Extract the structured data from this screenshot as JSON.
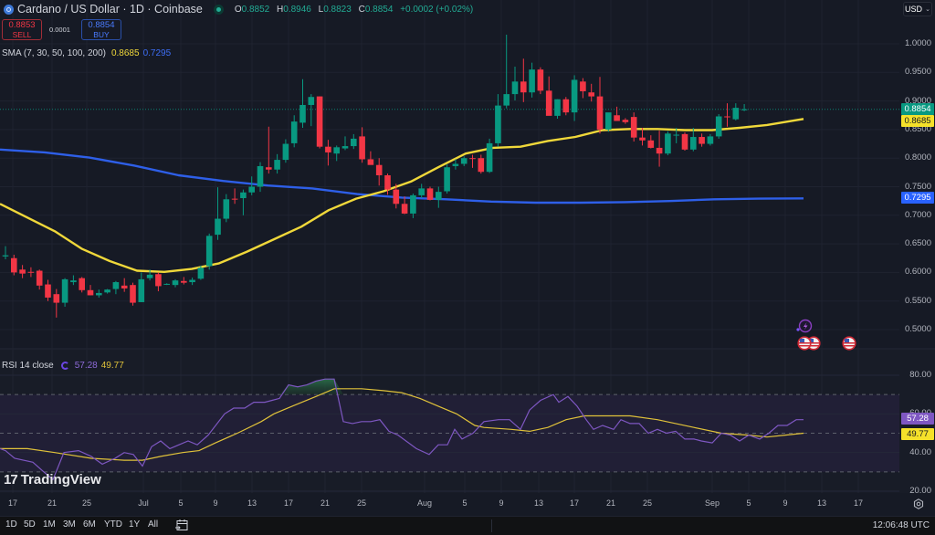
{
  "header": {
    "symbol_title": "Cardano / US Dollar · 1D · Coinbase",
    "ohlc": {
      "open_label": "O",
      "open": "0.8852",
      "high_label": "H",
      "high": "0.8946",
      "low_label": "L",
      "low": "0.8823",
      "close_label": "C",
      "close": "0.8854",
      "change": "+0.0002 (+0.02%)"
    },
    "currency_selector": "USD",
    "currency_chevron": "⌄"
  },
  "trade": {
    "sell_price": "0.8853",
    "sell_label": "SELL",
    "spread": "0.0001",
    "buy_price": "0.8854",
    "buy_label": "BUY"
  },
  "indicators": {
    "sma": {
      "label": "SMA (7, 30, 50, 100, 200)",
      "value1": "0.8685",
      "value2": "0.7295",
      "color1": "#f0d83a",
      "color2": "#2e5fe8"
    },
    "rsi": {
      "label": "RSI 14 close",
      "value": "57.28",
      "ma_value": "49.77",
      "color": "#7e57c2",
      "ma_color": "#e0c23a"
    }
  },
  "price_axis": {
    "labels": [
      "1.0000",
      "0.9500",
      "0.9000",
      "0.8500",
      "0.8000",
      "0.7500",
      "0.7000",
      "0.6500",
      "0.6000",
      "0.5500",
      "0.5000"
    ],
    "current_price_tag": "0.8854",
    "sma_yellow_tag": "0.8685",
    "sma_blue_tag": "0.7295"
  },
  "rsi_axis": {
    "labels": [
      "80.00",
      "60.00",
      "40.00",
      "20.00"
    ],
    "rsi_tag": "57.28",
    "rsi_ma_tag": "49.77"
  },
  "time_axis": {
    "labels": [
      "17",
      "21",
      "25",
      "Jul",
      "5",
      "9",
      "13",
      "17",
      "21",
      "25",
      "Aug",
      "5",
      "9",
      "13",
      "17",
      "21",
      "25",
      "Sep",
      "5",
      "9",
      "13",
      "17"
    ]
  },
  "bottom_bar": {
    "ranges": [
      "1D",
      "5D",
      "1M",
      "3M",
      "6M",
      "YTD",
      "1Y",
      "All"
    ],
    "clock": "12:06:48 UTC"
  },
  "branding": {
    "logo_text": "TradingView",
    "logo_mark": "17"
  },
  "colors": {
    "up": "#089981",
    "down": "#f23645",
    "background": "#161a25",
    "grid": "#222633"
  },
  "chart_data": {
    "type": "candlestick",
    "title": "Cardano / US Dollar · 1D · Coinbase",
    "xlabel": "",
    "ylabel": "USD",
    "ylim": [
      0.47,
      1.02
    ],
    "x_ticks": [
      "17",
      "21",
      "25",
      "Jul",
      "5",
      "9",
      "13",
      "17",
      "21",
      "25",
      "Aug",
      "5",
      "9",
      "13",
      "17",
      "21",
      "25",
      "Sep",
      "5",
      "9",
      "13",
      "17"
    ],
    "candles": [
      {
        "date": "Jun 15",
        "o": 0.628,
        "h": 0.646,
        "l": 0.623,
        "c": 0.63
      },
      {
        "date": "Jun 16",
        "o": 0.625,
        "h": 0.631,
        "l": 0.595,
        "c": 0.6
      },
      {
        "date": "Jun 17",
        "o": 0.605,
        "h": 0.613,
        "l": 0.59,
        "c": 0.598
      },
      {
        "date": "Jun 18",
        "o": 0.601,
        "h": 0.609,
        "l": 0.592,
        "c": 0.6
      },
      {
        "date": "Jun 19",
        "o": 0.603,
        "h": 0.605,
        "l": 0.57,
        "c": 0.577
      },
      {
        "date": "Jun 20",
        "o": 0.579,
        "h": 0.587,
        "l": 0.55,
        "c": 0.556
      },
      {
        "date": "Jun 21",
        "o": 0.562,
        "h": 0.571,
        "l": 0.521,
        "c": 0.547
      },
      {
        "date": "Jun 22",
        "o": 0.547,
        "h": 0.59,
        "l": 0.54,
        "c": 0.588
      },
      {
        "date": "Jun 23",
        "o": 0.583,
        "h": 0.595,
        "l": 0.578,
        "c": 0.586
      },
      {
        "date": "Jun 24",
        "o": 0.59,
        "h": 0.592,
        "l": 0.565,
        "c": 0.569
      },
      {
        "date": "Jun 25",
        "o": 0.569,
        "h": 0.578,
        "l": 0.56,
        "c": 0.56
      },
      {
        "date": "Jun 26",
        "o": 0.56,
        "h": 0.57,
        "l": 0.556,
        "c": 0.564
      },
      {
        "date": "Jun 27",
        "o": 0.565,
        "h": 0.571,
        "l": 0.563,
        "c": 0.57
      },
      {
        "date": "Jun 28",
        "o": 0.571,
        "h": 0.585,
        "l": 0.562,
        "c": 0.583
      },
      {
        "date": "Jun 29",
        "o": 0.577,
        "h": 0.59,
        "l": 0.566,
        "c": 0.572
      },
      {
        "date": "Jun 30",
        "o": 0.578,
        "h": 0.582,
        "l": 0.542,
        "c": 0.547
      },
      {
        "date": "Jul 1",
        "o": 0.548,
        "h": 0.6,
        "l": 0.548,
        "c": 0.588
      },
      {
        "date": "Jul 2",
        "o": 0.59,
        "h": 0.605,
        "l": 0.586,
        "c": 0.596
      },
      {
        "date": "Jul 3",
        "o": 0.597,
        "h": 0.6,
        "l": 0.567,
        "c": 0.576
      },
      {
        "date": "Jul 4",
        "o": 0.58,
        "h": 0.581,
        "l": 0.578,
        "c": 0.58
      },
      {
        "date": "Jul 5",
        "o": 0.578,
        "h": 0.588,
        "l": 0.574,
        "c": 0.586
      },
      {
        "date": "Jul 6",
        "o": 0.585,
        "h": 0.592,
        "l": 0.579,
        "c": 0.582
      },
      {
        "date": "Jul 7",
        "o": 0.583,
        "h": 0.591,
        "l": 0.578,
        "c": 0.587
      },
      {
        "date": "Jul 8",
        "o": 0.589,
        "h": 0.612,
        "l": 0.587,
        "c": 0.608
      },
      {
        "date": "Jul 9",
        "o": 0.611,
        "h": 0.668,
        "l": 0.605,
        "c": 0.664
      },
      {
        "date": "Jul 10",
        "o": 0.666,
        "h": 0.749,
        "l": 0.657,
        "c": 0.694
      },
      {
        "date": "Jul 11",
        "o": 0.694,
        "h": 0.737,
        "l": 0.688,
        "c": 0.728
      },
      {
        "date": "Jul 12",
        "o": 0.729,
        "h": 0.747,
        "l": 0.72,
        "c": 0.728
      },
      {
        "date": "Jul 13",
        "o": 0.73,
        "h": 0.745,
        "l": 0.7,
        "c": 0.74
      },
      {
        "date": "Jul 14",
        "o": 0.74,
        "h": 0.768,
        "l": 0.735,
        "c": 0.75
      },
      {
        "date": "Jul 15",
        "o": 0.75,
        "h": 0.793,
        "l": 0.741,
        "c": 0.786
      },
      {
        "date": "Jul 16",
        "o": 0.784,
        "h": 0.855,
        "l": 0.773,
        "c": 0.78
      },
      {
        "date": "Jul 17",
        "o": 0.78,
        "h": 0.807,
        "l": 0.773,
        "c": 0.797
      },
      {
        "date": "Jul 18",
        "o": 0.797,
        "h": 0.833,
        "l": 0.792,
        "c": 0.825
      },
      {
        "date": "Jul 19",
        "o": 0.826,
        "h": 0.875,
        "l": 0.819,
        "c": 0.864
      },
      {
        "date": "Jul 20",
        "o": 0.862,
        "h": 0.938,
        "l": 0.853,
        "c": 0.893
      },
      {
        "date": "Jul 21",
        "o": 0.893,
        "h": 0.912,
        "l": 0.856,
        "c": 0.907
      },
      {
        "date": "Jul 22",
        "o": 0.908,
        "h": 0.908,
        "l": 0.817,
        "c": 0.82
      },
      {
        "date": "Jul 23",
        "o": 0.82,
        "h": 0.832,
        "l": 0.787,
        "c": 0.81
      },
      {
        "date": "Jul 24",
        "o": 0.808,
        "h": 0.822,
        "l": 0.795,
        "c": 0.819
      },
      {
        "date": "Jul 25",
        "o": 0.817,
        "h": 0.838,
        "l": 0.814,
        "c": 0.821
      },
      {
        "date": "Jul 26",
        "o": 0.821,
        "h": 0.842,
        "l": 0.816,
        "c": 0.834
      },
      {
        "date": "Jul 27",
        "o": 0.838,
        "h": 0.854,
        "l": 0.792,
        "c": 0.798
      },
      {
        "date": "Jul 28",
        "o": 0.798,
        "h": 0.812,
        "l": 0.789,
        "c": 0.788
      },
      {
        "date": "Jul 29",
        "o": 0.788,
        "h": 0.8,
        "l": 0.752,
        "c": 0.77
      },
      {
        "date": "Jul 30",
        "o": 0.77,
        "h": 0.773,
        "l": 0.736,
        "c": 0.745
      },
      {
        "date": "Jul 31",
        "o": 0.745,
        "h": 0.755,
        "l": 0.712,
        "c": 0.72
      },
      {
        "date": "Aug 1",
        "o": 0.72,
        "h": 0.733,
        "l": 0.702,
        "c": 0.703
      },
      {
        "date": "Aug 2",
        "o": 0.703,
        "h": 0.738,
        "l": 0.695,
        "c": 0.735
      },
      {
        "date": "Aug 3",
        "o": 0.735,
        "h": 0.755,
        "l": 0.73,
        "c": 0.747
      },
      {
        "date": "Aug 4",
        "o": 0.747,
        "h": 0.75,
        "l": 0.726,
        "c": 0.727
      },
      {
        "date": "Aug 5",
        "o": 0.727,
        "h": 0.75,
        "l": 0.713,
        "c": 0.741
      },
      {
        "date": "Aug 6",
        "o": 0.742,
        "h": 0.789,
        "l": 0.738,
        "c": 0.784
      },
      {
        "date": "Aug 7",
        "o": 0.786,
        "h": 0.798,
        "l": 0.78,
        "c": 0.79
      },
      {
        "date": "Aug 8",
        "o": 0.79,
        "h": 0.803,
        "l": 0.786,
        "c": 0.8
      },
      {
        "date": "Aug 9",
        "o": 0.8,
        "h": 0.806,
        "l": 0.783,
        "c": 0.799
      },
      {
        "date": "Aug 10",
        "o": 0.8,
        "h": 0.806,
        "l": 0.773,
        "c": 0.776
      },
      {
        "date": "Aug 11",
        "o": 0.776,
        "h": 0.834,
        "l": 0.774,
        "c": 0.826
      },
      {
        "date": "Aug 12",
        "o": 0.826,
        "h": 0.912,
        "l": 0.82,
        "c": 0.892
      },
      {
        "date": "Aug 13",
        "o": 0.892,
        "h": 1.016,
        "l": 0.887,
        "c": 0.912
      },
      {
        "date": "Aug 14",
        "o": 0.912,
        "h": 0.96,
        "l": 0.901,
        "c": 0.934
      },
      {
        "date": "Aug 15",
        "o": 0.934,
        "h": 0.974,
        "l": 0.898,
        "c": 0.915
      },
      {
        "date": "Aug 16",
        "o": 0.915,
        "h": 0.967,
        "l": 0.906,
        "c": 0.955
      },
      {
        "date": "Aug 17",
        "o": 0.955,
        "h": 0.959,
        "l": 0.912,
        "c": 0.918
      },
      {
        "date": "Aug 18",
        "o": 0.918,
        "h": 0.943,
        "l": 0.88,
        "c": 0.874
      },
      {
        "date": "Aug 19",
        "o": 0.874,
        "h": 0.903,
        "l": 0.869,
        "c": 0.903
      },
      {
        "date": "Aug 20",
        "o": 0.903,
        "h": 0.907,
        "l": 0.875,
        "c": 0.88
      },
      {
        "date": "Aug 21",
        "o": 0.88,
        "h": 0.945,
        "l": 0.865,
        "c": 0.937
      },
      {
        "date": "Aug 22",
        "o": 0.934,
        "h": 0.94,
        "l": 0.905,
        "c": 0.917
      },
      {
        "date": "Aug 23",
        "o": 0.915,
        "h": 0.93,
        "l": 0.899,
        "c": 0.908
      },
      {
        "date": "Aug 24",
        "o": 0.908,
        "h": 0.942,
        "l": 0.843,
        "c": 0.85
      },
      {
        "date": "Aug 25",
        "o": 0.85,
        "h": 0.876,
        "l": 0.846,
        "c": 0.88
      },
      {
        "date": "Aug 26",
        "o": 0.875,
        "h": 0.89,
        "l": 0.873,
        "c": 0.865
      },
      {
        "date": "Aug 27",
        "o": 0.867,
        "h": 0.87,
        "l": 0.86,
        "c": 0.863
      },
      {
        "date": "Aug 28",
        "o": 0.872,
        "h": 0.88,
        "l": 0.829,
        "c": 0.836
      },
      {
        "date": "Aug 29",
        "o": 0.836,
        "h": 0.853,
        "l": 0.822,
        "c": 0.831
      },
      {
        "date": "Aug 30",
        "o": 0.831,
        "h": 0.84,
        "l": 0.817,
        "c": 0.818
      },
      {
        "date": "Aug 31",
        "o": 0.818,
        "h": 0.848,
        "l": 0.785,
        "c": 0.808
      },
      {
        "date": "Sep 1",
        "o": 0.808,
        "h": 0.847,
        "l": 0.805,
        "c": 0.843
      },
      {
        "date": "Sep 2",
        "o": 0.84,
        "h": 0.853,
        "l": 0.826,
        "c": 0.841
      },
      {
        "date": "Sep 3",
        "o": 0.842,
        "h": 0.845,
        "l": 0.813,
        "c": 0.815
      },
      {
        "date": "Sep 4",
        "o": 0.815,
        "h": 0.853,
        "l": 0.812,
        "c": 0.837
      },
      {
        "date": "Sep 5",
        "o": 0.837,
        "h": 0.843,
        "l": 0.82,
        "c": 0.825
      },
      {
        "date": "Sep 6",
        "o": 0.825,
        "h": 0.842,
        "l": 0.822,
        "c": 0.838
      },
      {
        "date": "Sep 7",
        "o": 0.838,
        "h": 0.877,
        "l": 0.834,
        "c": 0.873
      },
      {
        "date": "Sep 8",
        "o": 0.873,
        "h": 0.896,
        "l": 0.855,
        "c": 0.872
      },
      {
        "date": "Sep 9",
        "o": 0.868,
        "h": 0.896,
        "l": 0.866,
        "c": 0.888
      },
      {
        "date": "Sep 10",
        "o": 0.8852,
        "h": 0.8946,
        "l": 0.8823,
        "c": 0.8854
      }
    ],
    "series": [
      {
        "name": "SMA (yellow)",
        "color": "#f0d83a",
        "last": 0.8685,
        "points": [
          [
            0,
            0.72
          ],
          [
            6,
            0.696
          ],
          [
            12,
            0.672
          ],
          [
            18,
            0.641
          ],
          [
            24,
            0.62
          ],
          [
            30,
            0.603
          ],
          [
            36,
            0.601
          ],
          [
            42,
            0.606
          ],
          [
            48,
            0.616
          ],
          [
            54,
            0.636
          ],
          [
            60,
            0.658
          ],
          [
            66,
            0.68
          ],
          [
            72,
            0.709
          ],
          [
            78,
            0.729
          ],
          [
            84,
            0.742
          ],
          [
            90,
            0.759
          ],
          [
            96,
            0.784
          ],
          [
            102,
            0.808
          ],
          [
            108,
            0.818
          ],
          [
            114,
            0.82
          ],
          [
            120,
            0.83
          ],
          [
            126,
            0.837
          ],
          [
            132,
            0.849
          ],
          [
            138,
            0.851
          ],
          [
            144,
            0.851
          ],
          [
            150,
            0.849
          ],
          [
            156,
            0.849
          ],
          [
            162,
            0.853
          ],
          [
            168,
            0.858
          ],
          [
            174,
            0.866
          ],
          [
            176,
            0.8685
          ]
        ]
      },
      {
        "name": "SMA (blue)",
        "color": "#2e5fe8",
        "last": 0.7295,
        "points": [
          [
            0,
            0.815
          ],
          [
            20,
            0.81
          ],
          [
            40,
            0.801
          ],
          [
            60,
            0.787
          ],
          [
            80,
            0.77
          ],
          [
            100,
            0.76
          ],
          [
            120,
            0.752
          ],
          [
            140,
            0.747
          ],
          [
            160,
            0.737
          ],
          [
            180,
            0.731
          ],
          [
            200,
            0.728
          ],
          [
            220,
            0.724
          ],
          [
            240,
            0.722
          ],
          [
            260,
            0.722
          ],
          [
            280,
            0.723
          ],
          [
            300,
            0.725
          ],
          [
            320,
            0.728
          ],
          [
            340,
            0.729
          ],
          [
            360,
            0.7295
          ]
        ]
      }
    ],
    "rsi": {
      "ylim": [
        20,
        80
      ],
      "overbought": 70,
      "oversold": 30,
      "midline": 50,
      "rsi_last": 57.28,
      "rsi_ma_last": 49.77
    }
  }
}
